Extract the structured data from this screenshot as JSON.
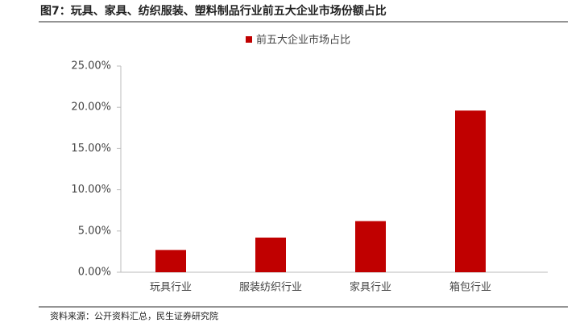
{
  "chart_data": {
    "type": "bar",
    "title": "图7：玩具、家具、纺织服装、塑料制品行业前五大企业市场份额占比",
    "source": "资料来源：公开资料汇总，民生证券研究院",
    "categories": [
      "玩具行业",
      "服装纺织行业",
      "家具行业",
      "箱包行业"
    ],
    "series": [
      {
        "name": "前五大企业市场占比",
        "color": "#c00000",
        "values": [
          2.7,
          4.2,
          6.2,
          19.6
        ]
      }
    ],
    "ylim": [
      0,
      25
    ],
    "yticks": [
      {
        "value": 0,
        "label": "0.00%"
      },
      {
        "value": 5,
        "label": "5.00%"
      },
      {
        "value": 10,
        "label": "10.00%"
      },
      {
        "value": 15,
        "label": "15.00%"
      },
      {
        "value": 20,
        "label": "20.00%"
      },
      {
        "value": 25,
        "label": "25.00%"
      }
    ],
    "grid": false,
    "legend": "top"
  }
}
